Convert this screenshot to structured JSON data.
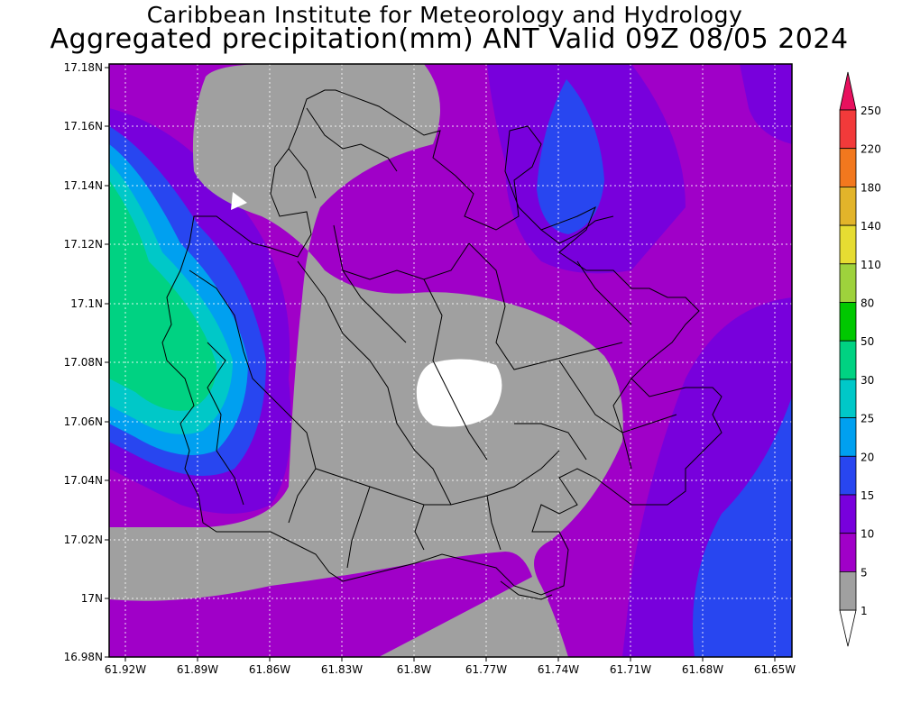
{
  "header": {
    "title_line1": "Caribbean Institute for Meteorology and Hydrology",
    "title_line2": "Aggregated precipitation(mm) ANT Valid 09Z 08/05 2024"
  },
  "map": {
    "lat_labels": [
      "17.18N",
      "17.16N",
      "17.14N",
      "17.12N",
      "17.1N",
      "17.08N",
      "17.06N",
      "17.04N",
      "17.02N",
      "17N",
      "16.98N"
    ],
    "lon_labels": [
      "61.92W",
      "61.89W",
      "61.86W",
      "61.83W",
      "61.8W",
      "61.77W",
      "61.74W",
      "61.71W",
      "61.68W",
      "61.65W"
    ]
  },
  "legend": {
    "levels": [
      {
        "label": "250",
        "color": "#e8105e"
      },
      {
        "label": "220",
        "color": "#f23a3a"
      },
      {
        "label": "180",
        "color": "#f2781e"
      },
      {
        "label": "140",
        "color": "#e2b42a"
      },
      {
        "label": "110",
        "color": "#e6dc32"
      },
      {
        "label": "80",
        "color": "#9ed23c"
      },
      {
        "label": "50",
        "color": "#00c800"
      },
      {
        "label": "30",
        "color": "#00d282"
      },
      {
        "label": "25",
        "color": "#00c8c8"
      },
      {
        "label": "20",
        "color": "#00a0f0"
      },
      {
        "label": "15",
        "color": "#2846f0"
      },
      {
        "label": "10",
        "color": "#7800dc"
      },
      {
        "label": "5",
        "color": "#a000c8"
      },
      {
        "label": "1",
        "color": "#a0a0a0"
      }
    ]
  }
}
